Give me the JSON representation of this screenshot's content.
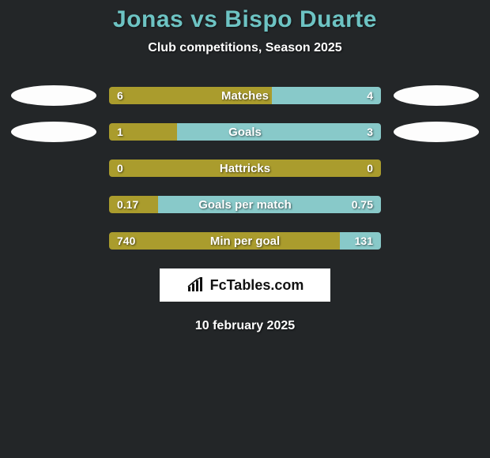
{
  "title": "Jonas vs Bispo Duarte",
  "subtitle": "Club competitions, Season 2025",
  "date": "10 february 2025",
  "logo_text": "FcTables.com",
  "colors": {
    "background": "#232628",
    "title": "#6dc3c3",
    "text": "#ffffff",
    "left_bar": "#aa9c2d",
    "right_bar": "#88c9c9",
    "badge": "#fdfdfd"
  },
  "rows": [
    {
      "label": "Matches",
      "left_val": "6",
      "right_val": "4",
      "left_pct": 60,
      "right_pct": 40,
      "show_badges": true
    },
    {
      "label": "Goals",
      "left_val": "1",
      "right_val": "3",
      "left_pct": 25,
      "right_pct": 75,
      "show_badges": true
    },
    {
      "label": "Hattricks",
      "left_val": "0",
      "right_val": "0",
      "left_pct": 100,
      "right_pct": 0,
      "show_badges": false
    },
    {
      "label": "Goals per match",
      "left_val": "0.17",
      "right_val": "0.75",
      "left_pct": 18,
      "right_pct": 82,
      "show_badges": false
    },
    {
      "label": "Min per goal",
      "left_val": "740",
      "right_val": "131",
      "left_pct": 85,
      "right_pct": 15,
      "show_badges": false
    }
  ]
}
